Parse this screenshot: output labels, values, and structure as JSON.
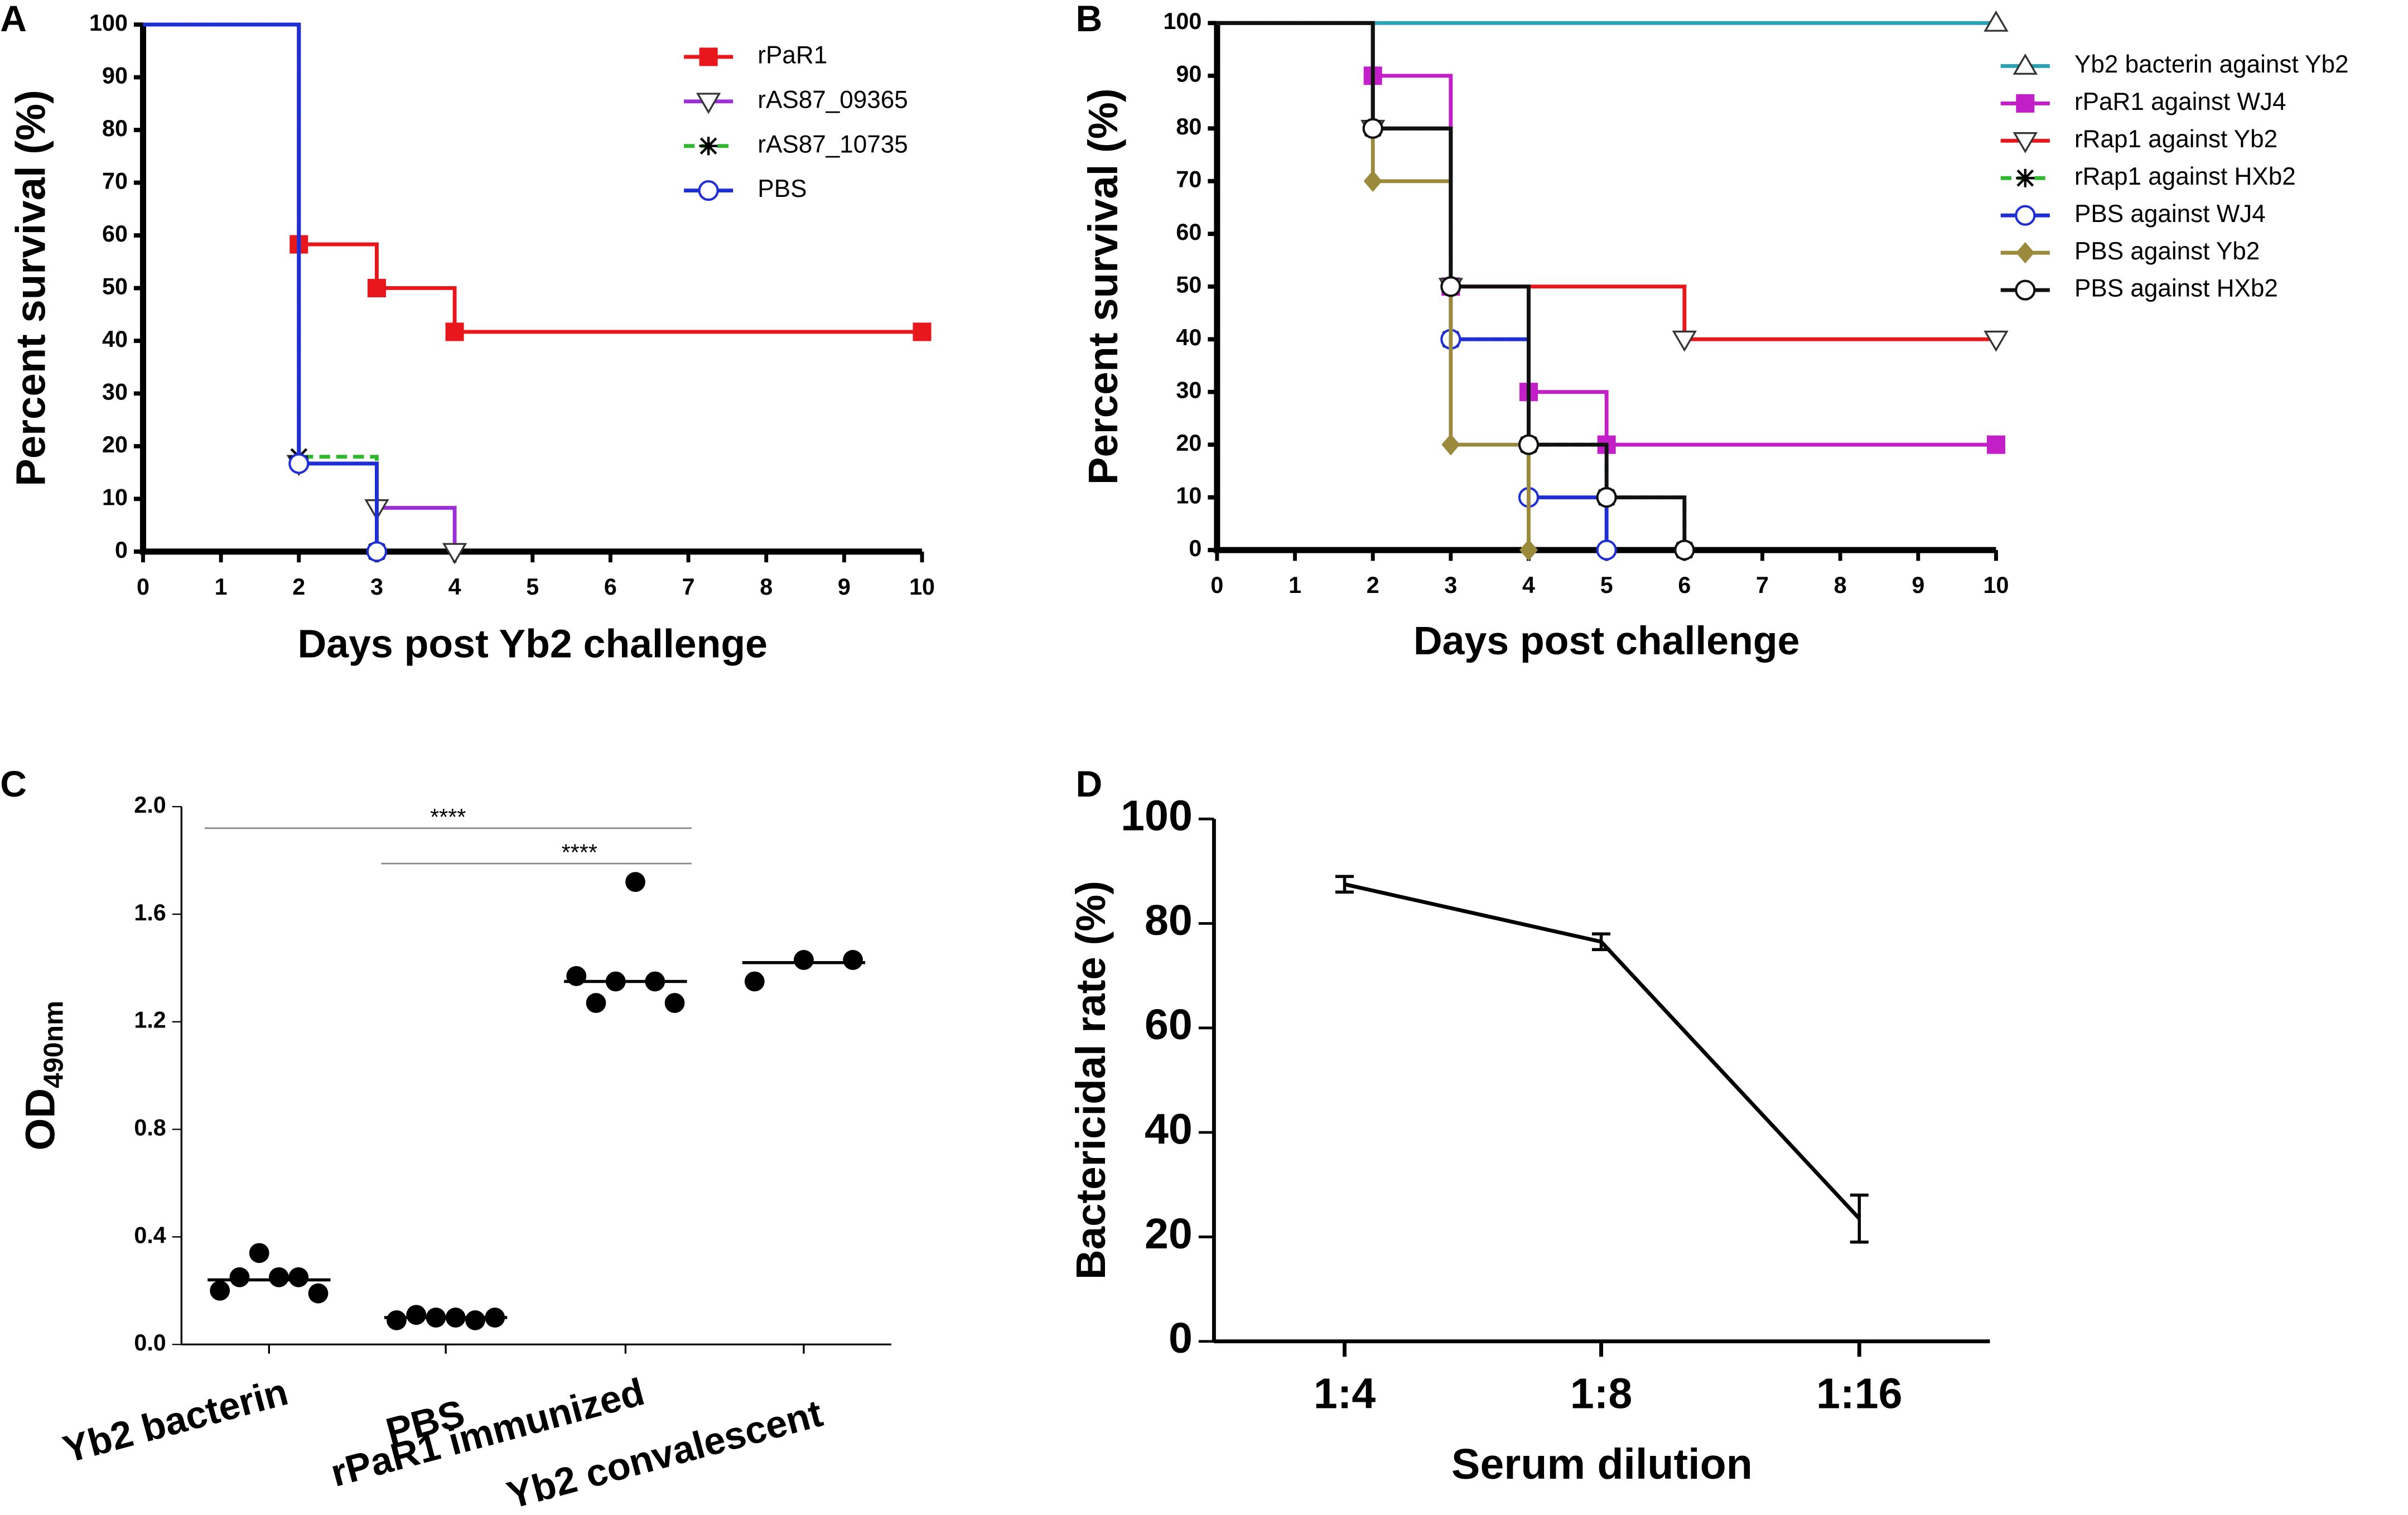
{
  "chart_data": [
    {
      "type": "km",
      "panel": "A",
      "xlabel": "Days post Yb2 challenge",
      "ylabel": "Percent survival (%)",
      "xlim": [
        0,
        10
      ],
      "ylim": [
        0,
        100
      ],
      "xticks": [
        0,
        1,
        2,
        3,
        4,
        5,
        6,
        7,
        8,
        9,
        10
      ],
      "yticks": [
        0,
        10,
        20,
        30,
        40,
        50,
        60,
        70,
        80,
        90,
        100
      ],
      "series": [
        {
          "name": "rPaR1",
          "color": "#e8171b",
          "marker": "square",
          "x": [
            0,
            2,
            3,
            4,
            10
          ],
          "values": [
            100,
            58.3,
            50,
            41.7,
            41.7
          ]
        },
        {
          "name": "rAS87_09365",
          "color": "#9b30d9",
          "marker": "triangle-down",
          "x": [
            0,
            2,
            3,
            4
          ],
          "values": [
            100,
            16.7,
            8.3,
            0
          ]
        },
        {
          "name": "rAS87_10735",
          "color": "#2db82d",
          "marker": "asterisk",
          "dashed": true,
          "x": [
            0,
            2,
            3
          ],
          "values": [
            100,
            18,
            0
          ]
        },
        {
          "name": "PBS",
          "color": "#1f2fd6",
          "marker": "circle",
          "x": [
            0,
            2,
            3
          ],
          "values": [
            100,
            16.7,
            0
          ]
        }
      ]
    },
    {
      "type": "km",
      "panel": "B",
      "xlabel": "Days post challenge",
      "ylabel": "Percent survival (%)",
      "xlim": [
        0,
        10
      ],
      "ylim": [
        0,
        100
      ],
      "xticks": [
        0,
        1,
        2,
        3,
        4,
        5,
        6,
        7,
        8,
        9,
        10
      ],
      "yticks": [
        0,
        10,
        20,
        30,
        40,
        50,
        60,
        70,
        80,
        90,
        100
      ],
      "series": [
        {
          "name": "Yb2 bacterin against Yb2",
          "color": "#2aa3b5",
          "marker": "triangle-up",
          "x": [
            0,
            10
          ],
          "values": [
            100,
            100
          ]
        },
        {
          "name": "rPaR1 against WJ4",
          "color": "#c21fc8",
          "marker": "square",
          "x": [
            0,
            2,
            3,
            4,
            5,
            10
          ],
          "values": [
            100,
            90,
            50,
            30,
            20,
            20
          ]
        },
        {
          "name": "rRap1 against Yb2",
          "color": "#e8171b",
          "marker": "triangle-down",
          "x": [
            0,
            2,
            3,
            6,
            10
          ],
          "values": [
            100,
            80,
            50,
            40,
            40
          ]
        },
        {
          "name": "rRap1 against HXb2",
          "color": "#2db82d",
          "marker": "asterisk",
          "dashed": true,
          "x": [
            0,
            2,
            3,
            4,
            5,
            6
          ],
          "values": [
            100,
            80,
            40,
            20,
            10,
            0
          ]
        },
        {
          "name": "PBS against WJ4",
          "color": "#1f2fd6",
          "marker": "circle",
          "x": [
            0,
            2,
            3,
            4,
            5
          ],
          "values": [
            100,
            80,
            40,
            10,
            0
          ]
        },
        {
          "name": "PBS against Yb2",
          "color": "#9c8a3c",
          "marker": "diamond",
          "x": [
            0,
            2,
            3,
            4
          ],
          "values": [
            100,
            70,
            20,
            0
          ]
        },
        {
          "name": "PBS against HXb2",
          "color": "#111111",
          "marker": "circle",
          "x": [
            0,
            2,
            3,
            4,
            5,
            6
          ],
          "values": [
            100,
            80,
            50,
            20,
            10,
            0
          ]
        }
      ]
    },
    {
      "type": "dot",
      "panel": "C",
      "ylabel": "OD",
      "ylabel_sub": "490nm",
      "color": "#000000",
      "categories": [
        "Yb2 bacterin",
        "PBS",
        "rPaR1 immunized",
        "Yb2 convalescent"
      ],
      "points": [
        [
          0.2,
          0.25,
          0.34,
          0.25,
          0.25,
          0.19
        ],
        [
          0.09,
          0.11,
          0.1,
          0.1,
          0.09,
          0.1
        ],
        [
          1.37,
          1.27,
          1.35,
          1.72,
          1.35,
          1.27
        ],
        [
          1.35,
          1.43,
          1.43
        ]
      ],
      "medians": [
        0.24,
        0.1,
        1.35,
        1.42
      ],
      "ylim": [
        0,
        2
      ],
      "yticks": [
        {
          "value": 0,
          "label": "0.0"
        },
        {
          "value": 0.4,
          "label": "0.4"
        },
        {
          "value": 0.8,
          "label": "0.8"
        },
        {
          "value": 1.2,
          "label": "1.2"
        },
        {
          "value": 1.6,
          "label": "1.6"
        },
        {
          "value": 2,
          "label": "2.0"
        }
      ],
      "annotations": [
        {
          "label": "****",
          "from": 0,
          "to": 2
        },
        {
          "label": "****",
          "from": 1,
          "to": 2
        }
      ]
    },
    {
      "type": "line",
      "panel": "D",
      "xlabel": "Serum dilution",
      "ylabel": "Bactericidal rate (%)",
      "color": "#000000",
      "categories": [
        "1:4",
        "1:8",
        "1:16"
      ],
      "values": [
        87.5,
        76.5,
        23.5
      ],
      "errors": [
        1.5,
        1.5,
        4.5
      ],
      "ylim": [
        0,
        100
      ],
      "yticks": [
        0,
        20,
        40,
        60,
        80,
        100
      ]
    }
  ]
}
